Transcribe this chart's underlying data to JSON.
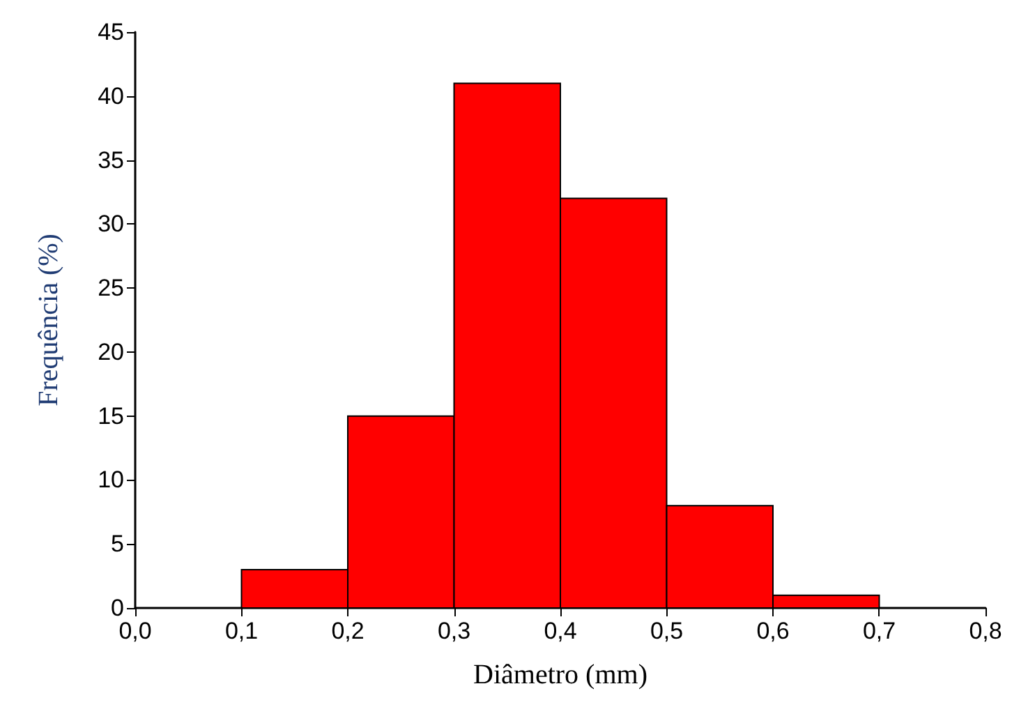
{
  "chart_data": {
    "type": "histogram",
    "xlabel": "Diâmetro (mm)",
    "ylabel": "Frequência (%)",
    "bins": [
      0.1,
      0.2,
      0.3,
      0.4,
      0.5,
      0.6,
      0.7
    ],
    "values": [
      3,
      15,
      41,
      32,
      8,
      1
    ],
    "color": "#ff0000",
    "xlim": [
      0,
      0.8
    ],
    "xticks": [
      {
        "value": 0,
        "label": "0,0"
      },
      {
        "value": 0.1,
        "label": "0,1"
      },
      {
        "value": 0.2,
        "label": "0,2"
      },
      {
        "value": 0.3,
        "label": "0,3"
      },
      {
        "value": 0.4,
        "label": "0,4"
      },
      {
        "value": 0.5,
        "label": "0,5"
      },
      {
        "value": 0.6,
        "label": "0,6"
      },
      {
        "value": 0.7,
        "label": "0,7"
      },
      {
        "value": 0.8,
        "label": "0,8"
      }
    ],
    "ylim": [
      0,
      45
    ],
    "yticks": [
      0,
      5,
      10,
      15,
      20,
      25,
      30,
      35,
      40,
      45
    ],
    "grid": false
  }
}
